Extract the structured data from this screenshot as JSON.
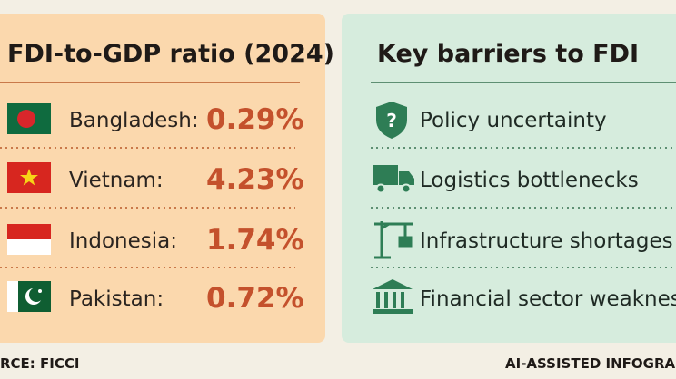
{
  "left": {
    "title": "FDI-to-GDP ratio (2024)",
    "rows": [
      {
        "country": "Bangladesh:",
        "value": "0.29%"
      },
      {
        "country": "Vietnam:",
        "value": "4.23%"
      },
      {
        "country": "Indonesia:",
        "value": "1.74%"
      },
      {
        "country": "Pakistan:",
        "value": "0.72%"
      }
    ]
  },
  "right": {
    "title": "Key barriers to FDI",
    "items": [
      "Policy uncertainty",
      "Logistics bottlenecks",
      "Infrastructure shortages",
      "Financial sector weaknesse"
    ]
  },
  "footer": {
    "source": "RCE: FICCI",
    "credit": "AI-ASSISTED INFOGRAP"
  }
}
